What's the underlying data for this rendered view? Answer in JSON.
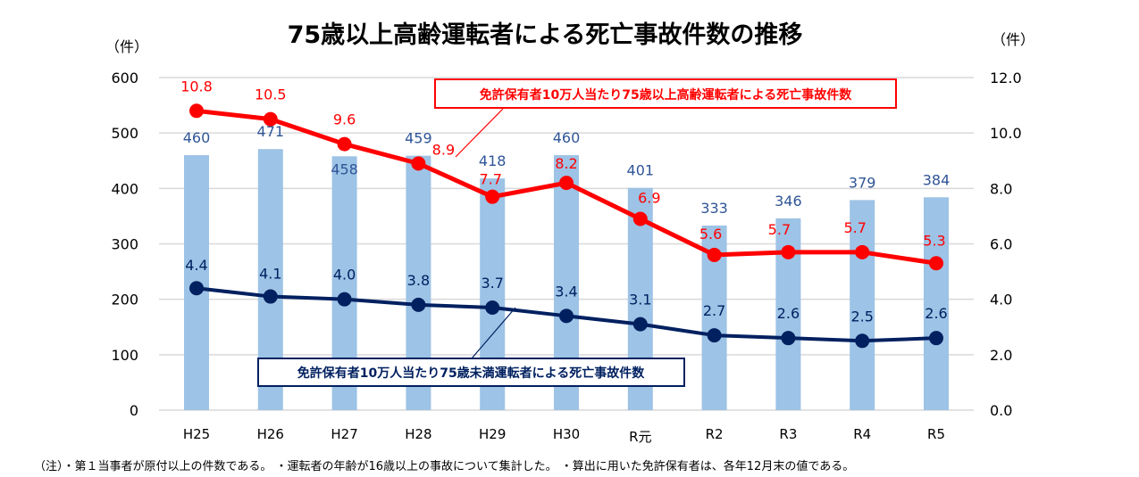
{
  "chart_data": {
    "type": "bar+line",
    "title": "75歳以上高齢運転者による死亡事故件数の推移",
    "ylabel_left": "（件）",
    "ylabel_right": "（件）",
    "categories": [
      "H25",
      "H26",
      "H27",
      "H28",
      "H29",
      "H30",
      "R元",
      "R2",
      "R3",
      "R4",
      "R5"
    ],
    "ylim_left": [
      0,
      600
    ],
    "yticks_left": [
      "0",
      "100",
      "200",
      "300",
      "400",
      "500",
      "600"
    ],
    "ylim_right": [
      0,
      12
    ],
    "yticks_right": [
      "0.0",
      "2.0",
      "4.0",
      "6.0",
      "8.0",
      "10.0",
      "12.0"
    ],
    "grid": true,
    "series": [
      {
        "name": "75歳以上高齢運転者による死亡事故件数",
        "type": "bar",
        "axis": "left",
        "color": "#9dc3e6",
        "label_color": "#2f5597",
        "values": [
          460,
          471,
          458,
          459,
          418,
          460,
          401,
          333,
          346,
          379,
          384
        ],
        "labels": [
          "460",
          "471",
          "458",
          "459",
          "418",
          "460",
          "401",
          "333",
          "346",
          "379",
          "384"
        ]
      },
      {
        "name": "免許保有者10万人当たり75歳以上高齢運転者による死亡事故件数",
        "type": "line",
        "axis": "right",
        "color": "#ff0000",
        "label_color": "#ff0000",
        "values": [
          10.8,
          10.5,
          9.6,
          8.9,
          7.7,
          8.2,
          6.9,
          5.6,
          5.7,
          5.7,
          5.3
        ],
        "labels": [
          "10.8",
          "10.5",
          "9.6",
          "8.9",
          "7.7",
          "8.2",
          "6.9",
          "5.6",
          "5.7",
          "5.7",
          "5.3"
        ]
      },
      {
        "name": "免許保有者10万人当たり75歳未満運転者による死亡事故件数",
        "type": "line",
        "axis": "right",
        "color": "#002060",
        "label_color": "#002060",
        "values": [
          4.4,
          4.1,
          4.0,
          3.8,
          3.7,
          3.4,
          3.1,
          2.7,
          2.6,
          2.5,
          2.6
        ],
        "labels": [
          "4.4",
          "4.1",
          "4.0",
          "3.8",
          "3.7",
          "3.4",
          "3.1",
          "2.7",
          "2.6",
          "2.5",
          "2.6"
        ]
      }
    ],
    "callouts": [
      {
        "text": "免許保有者10万人当たり75歳以上高齢運転者による死亡事故件数",
        "color": "#ff0000"
      },
      {
        "text": "免許保有者10万人当たり75歳未満運転者による死亡事故件数",
        "color": "#002060"
      }
    ]
  },
  "note": "（注）・第１当事者が原付以上の件数である。 ・運転者の年齢が16歳以上の事故について集計した。 ・算出に用いた免許保有者は、各年12月末の値である。"
}
